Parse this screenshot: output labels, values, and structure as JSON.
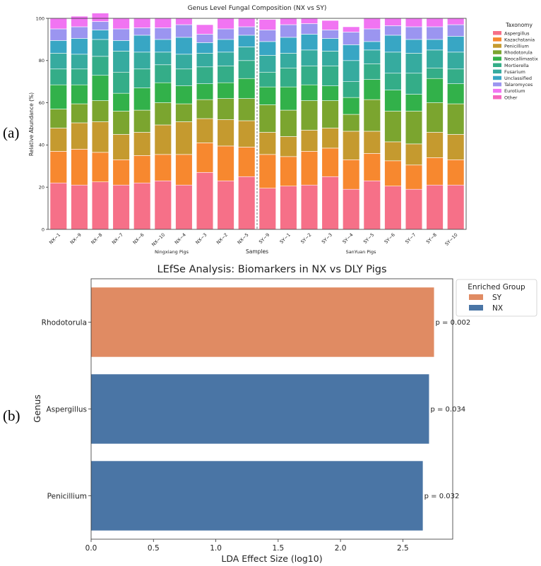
{
  "panel_labels": [
    "(a)",
    "(b)"
  ],
  "chart_data": [
    {
      "type": "bar",
      "subtype": "stacked-percent",
      "title": "Genus Level Fungal Composition (NX vs SY)",
      "xlabel": "Samples",
      "ylabel": "Relative Abundance (%)",
      "ylim": [
        0,
        100
      ],
      "yticks": [
        0,
        20,
        40,
        60,
        80,
        100
      ],
      "group_labels": [
        "Ningxiang Pigs",
        "SanYuan Pigs"
      ],
      "legend_title": "Taxonomy",
      "legend_position": "top-right outside",
      "categories": [
        "NX-1",
        "NX-9",
        "NX-8",
        "NX-7",
        "NX-6",
        "NX-10",
        "NX-4",
        "NX-3",
        "NX-2",
        "NX-5",
        "SY-9",
        "SY-1",
        "SY-2",
        "SY-3",
        "SY-4",
        "SY-5",
        "SY-6",
        "SY-7",
        "SY-8",
        "SY-10"
      ],
      "series": [
        {
          "name": "Aspergillus",
          "color": "#f67088",
          "values": [
            22,
            21,
            22.5,
            21,
            22,
            23,
            21,
            27,
            23,
            25,
            19.5,
            20.5,
            21,
            25,
            19,
            23,
            20.5,
            19,
            21,
            21
          ]
        },
        {
          "name": "Kazachstania",
          "color": "#f7882f",
          "values": [
            15,
            17,
            14,
            12,
            13,
            12.5,
            14.5,
            14,
            16.5,
            14,
            16,
            14,
            16,
            13.5,
            14,
            13,
            12,
            11.5,
            13,
            12
          ]
        },
        {
          "name": "Penicillium",
          "color": "#c59a2f",
          "values": [
            11,
            12.5,
            14.5,
            12,
            11,
            14,
            15.5,
            11.5,
            12.5,
            12.5,
            10.5,
            9.5,
            10,
            9.5,
            13.5,
            10.5,
            9,
            10,
            12,
            12
          ]
        },
        {
          "name": "Rhodotorula",
          "color": "#7ba52f",
          "values": [
            9,
            9,
            10,
            11,
            10.5,
            10.5,
            8.5,
            9,
            10,
            10.5,
            13,
            12.5,
            14,
            13,
            8,
            15,
            14.5,
            15.5,
            14,
            14.5
          ]
        },
        {
          "name": "Neocallimastix",
          "color": "#32b14a",
          "values": [
            11.5,
            9,
            12,
            8.5,
            10.5,
            9.5,
            8.5,
            7.5,
            7.5,
            9.5,
            8.5,
            11,
            7.5,
            7,
            8,
            9.5,
            10,
            8,
            11.5,
            9.5
          ]
        },
        {
          "name": "Mortierella",
          "color": "#34ad88",
          "values": [
            7.5,
            7.5,
            9,
            10,
            9,
            8.5,
            8,
            8,
            8,
            8.5,
            7,
            9,
            9,
            9.5,
            7.5,
            7.5,
            8,
            10,
            5,
            7
          ]
        },
        {
          "name": "Fusarium",
          "color": "#36ab9f",
          "values": [
            7.5,
            7,
            8,
            10,
            8,
            6,
            7,
            6.5,
            6.5,
            6.5,
            8,
            7,
            7.5,
            7,
            10,
            6.5,
            10,
            9.5,
            8.5,
            8
          ]
        },
        {
          "name": "Unclassified",
          "color": "#38a6c4",
          "values": [
            6,
            7.5,
            4.5,
            5,
            8,
            6,
            8,
            5,
            6,
            5.5,
            6.5,
            7.5,
            7.5,
            6,
            7.5,
            4,
            8,
            6.5,
            5,
            7.5
          ]
        },
        {
          "name": "Talaromyces",
          "color": "#9b95f0",
          "values": [
            5.5,
            5.5,
            4,
            5.5,
            3.5,
            5.5,
            6,
            4,
            5,
            4,
            5.5,
            6,
            5,
            4,
            6,
            6,
            4.5,
            6,
            6,
            5.5
          ]
        },
        {
          "name": "Eurotium",
          "color": "#f174f2",
          "values": [
            5,
            5,
            4,
            5,
            4.5,
            4.5,
            3,
            4.5,
            5,
            4,
            5,
            3,
            2.5,
            4.5,
            2.5,
            5,
            3.5,
            4,
            4,
            3
          ]
        },
        {
          "name": "Other",
          "color": "#f566be",
          "values": [
            0,
            0,
            0,
            0,
            0,
            0,
            0,
            0,
            0,
            0,
            0,
            0,
            0,
            0,
            0,
            0,
            0,
            0,
            0,
            0
          ]
        }
      ]
    },
    {
      "type": "bar",
      "orientation": "horizontal",
      "title": "LEfSe Analysis: Biomarkers in NX vs DLY Pigs",
      "xlabel": "LDA Effect Size (log10)",
      "ylabel": "Genus",
      "xlim": [
        0,
        2.9
      ],
      "xticks": [
        "0.0",
        "0.5",
        "1.0",
        "1.5",
        "2.0",
        "2.5"
      ],
      "legend_title": "Enriched Group",
      "legend_position": "top-right outside",
      "legend": [
        {
          "name": "SY",
          "color": "#e08b63"
        },
        {
          "name": "NX",
          "color": "#4a75a5"
        }
      ],
      "categories": [
        "Rhodotorula",
        "Aspergillus",
        "Penicillium"
      ],
      "values": [
        2.75,
        2.71,
        2.66
      ],
      "groups": [
        "SY",
        "NX",
        "NX"
      ],
      "p_labels": [
        "p = 0.002",
        "p = 0.034",
        "p = 0.032"
      ]
    }
  ]
}
